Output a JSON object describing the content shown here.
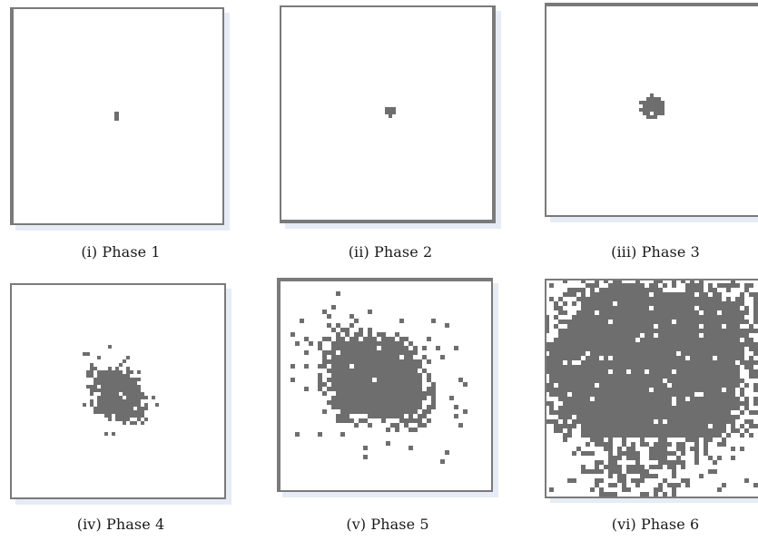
{
  "figure": {
    "colors": {
      "frame": "#7a7a7a",
      "fill": "#6e6e6e",
      "background": "#ffffff",
      "shadow": "#e6ebf5"
    },
    "panels": [
      {
        "caption": "(i) Phase 1"
      },
      {
        "caption": "(ii) Phase 2"
      },
      {
        "caption": "(iii) Phase 3"
      },
      {
        "caption": "(iv) Phase 4"
      },
      {
        "caption": "(v) Phase 5"
      },
      {
        "caption": "(vi) Phase 6"
      }
    ]
  }
}
